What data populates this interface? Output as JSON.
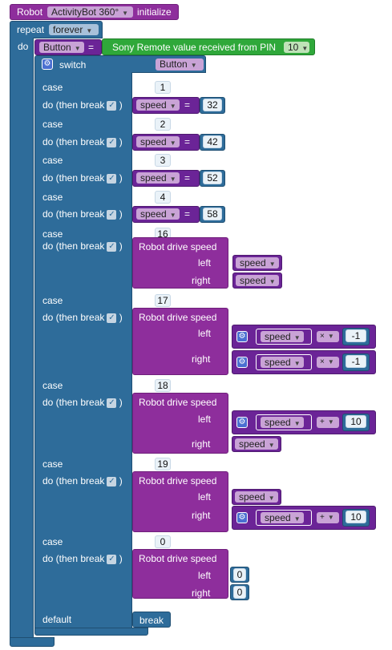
{
  "colors": {
    "purple": "#8e2e9c",
    "blue": "#2e6c9a",
    "green": "#2fa83a",
    "var": "#6b2497"
  },
  "init": {
    "robot": "Robot",
    "model": "ActivityBot 360°",
    "initialize": "initialize"
  },
  "repeat": {
    "label": "repeat",
    "mode": "forever",
    "do": "do"
  },
  "assign": {
    "var": "Button",
    "eq": "=",
    "sony": "Sony Remote value received from PIN",
    "pin": "10"
  },
  "switch_block": {
    "label": "switch",
    "var": "Button",
    "default_label": "default",
    "break_label": "break"
  },
  "labels": {
    "case": "case",
    "do_then_break": "do (then break",
    "close_paren": ")",
    "eq": "=",
    "drive": "Robot drive speed",
    "left": "left",
    "right": "right",
    "speed": "speed",
    "times": "×",
    "plus": "+"
  },
  "cases": [
    {
      "value": "1",
      "speed": "32"
    },
    {
      "value": "2",
      "speed": "42"
    },
    {
      "value": "3",
      "speed": "52"
    },
    {
      "value": "4",
      "speed": "58"
    },
    {
      "value": "16"
    },
    {
      "value": "17",
      "factor": "-1"
    },
    {
      "value": "18",
      "delta": "10"
    },
    {
      "value": "19",
      "delta": "10"
    },
    {
      "value": "0",
      "left": "0",
      "right": "0"
    }
  ]
}
